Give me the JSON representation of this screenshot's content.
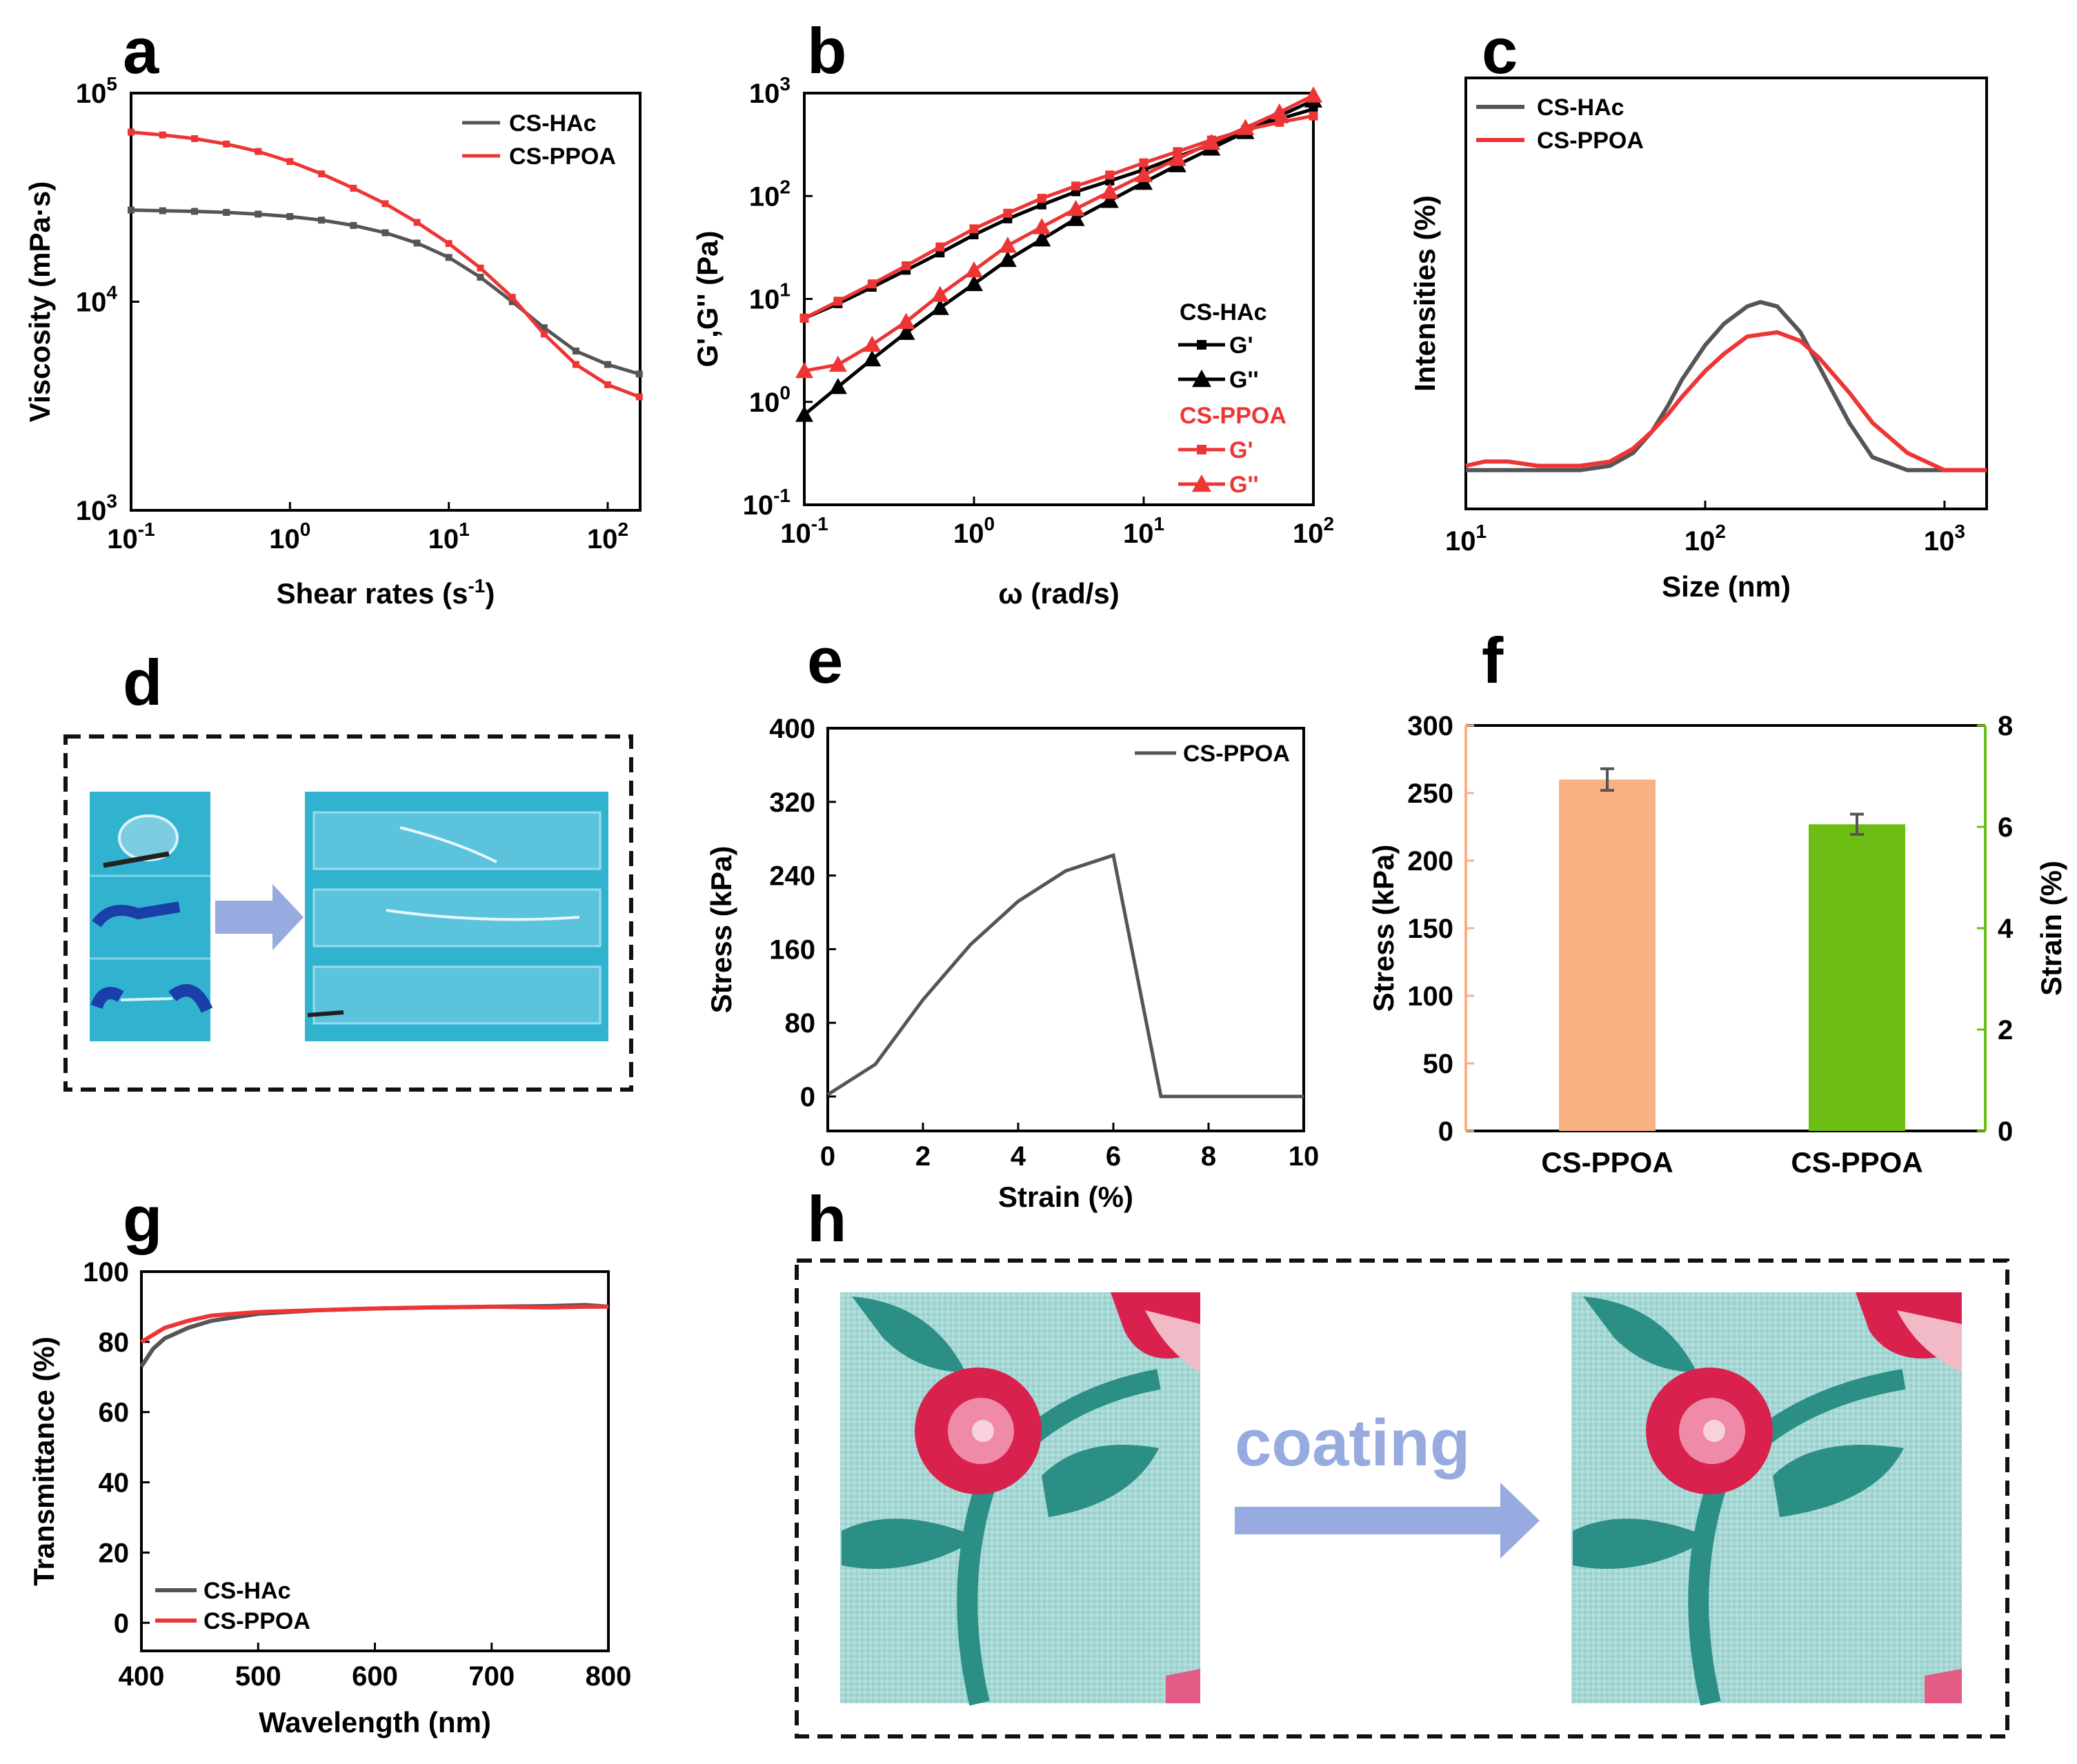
{
  "panel_labels": {
    "a": "a",
    "b": "b",
    "c": "c",
    "d": "d",
    "e": "e",
    "f": "f",
    "g": "g",
    "h": "h"
  },
  "colors": {
    "black": "#555555",
    "red": "#ee3535",
    "orange": "#f9b082",
    "green": "#6cbd14",
    "arrow": "#98abe0",
    "photo_bg": "#31b3d0"
  },
  "chart_data": [
    {
      "id": "a",
      "type": "line",
      "xscale": "log",
      "yscale": "log",
      "xlabel": "Shear rates (s",
      "xlabel_sup": "-1",
      "xlabel_end": ")",
      "ylabel": "Viscosity (mPa·s)",
      "xlim": [
        0.1,
        160
      ],
      "ylim": [
        1000,
        100000
      ],
      "xticks": [
        {
          "base": "10",
          "exp": "-1"
        },
        {
          "base": "10",
          "exp": "0"
        },
        {
          "base": "10",
          "exp": "1"
        },
        {
          "base": "10",
          "exp": "2"
        }
      ],
      "yticks": [
        {
          "base": "10",
          "exp": "3"
        },
        {
          "base": "10",
          "exp": "4"
        },
        {
          "base": "10",
          "exp": "5"
        }
      ],
      "series": [
        {
          "name": "CS-HAc",
          "color": "#555555",
          "x": [
            0.1,
            0.158,
            0.251,
            0.398,
            0.631,
            1,
            1.58,
            2.51,
            3.98,
            6.31,
            10,
            15.8,
            25.1,
            39.8,
            63.1,
            100,
            158
          ],
          "y": [
            27500,
            27300,
            27100,
            26800,
            26300,
            25600,
            24600,
            23200,
            21400,
            19100,
            16300,
            13100,
            10000,
            7500,
            5800,
            5000,
            4500
          ]
        },
        {
          "name": "CS-PPOA",
          "color": "#ee3535",
          "x": [
            0.1,
            0.158,
            0.251,
            0.398,
            0.631,
            1,
            1.58,
            2.51,
            3.98,
            6.31,
            10,
            15.8,
            25.1,
            39.8,
            63.1,
            100,
            158
          ],
          "y": [
            65000,
            63000,
            60500,
            57000,
            52500,
            47000,
            41000,
            35000,
            29500,
            24000,
            19000,
            14500,
            10500,
            7000,
            5000,
            4000,
            3500
          ]
        }
      ]
    },
    {
      "id": "b",
      "type": "line",
      "xscale": "log",
      "yscale": "log",
      "xlabel": "ω (rad/s)",
      "ylabel": "G',G'' (Pa)",
      "xlim": [
        0.1,
        100
      ],
      "ylim": [
        0.1,
        1000
      ],
      "xticks": [
        {
          "base": "10",
          "exp": "-1"
        },
        {
          "base": "10",
          "exp": "0"
        },
        {
          "base": "10",
          "exp": "1"
        },
        {
          "base": "10",
          "exp": "2"
        }
      ],
      "yticks": [
        {
          "base": "10",
          "exp": "-1"
        },
        {
          "base": "10",
          "exp": "0"
        },
        {
          "base": "10",
          "exp": "1"
        },
        {
          "base": "10",
          "exp": "2"
        },
        {
          "base": "10",
          "exp": "3"
        }
      ],
      "legend": {
        "group1": "CS-HAc",
        "group2": "CS-PPOA"
      },
      "series": [
        {
          "name": "G'",
          "group": "CS-HAc",
          "marker": "square",
          "color": "#000000",
          "x": [
            0.1,
            0.158,
            0.251,
            0.398,
            0.631,
            1,
            1.58,
            2.51,
            3.98,
            6.31,
            10,
            15.8,
            25.1,
            39.8,
            63.1,
            100
          ],
          "y": [
            6.5,
            9,
            13,
            19,
            28,
            42,
            60,
            82,
            110,
            140,
            180,
            240,
            320,
            430,
            560,
            700
          ]
        },
        {
          "name": "G''",
          "group": "CS-HAc",
          "marker": "triangle",
          "color": "#000000",
          "x": [
            0.1,
            0.158,
            0.251,
            0.398,
            0.631,
            1,
            1.58,
            2.51,
            3.98,
            6.31,
            10,
            15.8,
            25.1,
            39.8,
            63.1,
            100
          ],
          "y": [
            0.75,
            1.4,
            2.6,
            4.7,
            8.2,
            14,
            24,
            38,
            60,
            90,
            135,
            200,
            290,
            420,
            600,
            850
          ]
        },
        {
          "name": "G'",
          "group": "CS-PPOA",
          "marker": "square",
          "color": "#ee3535",
          "x": [
            0.1,
            0.158,
            0.251,
            0.398,
            0.631,
            1,
            1.58,
            2.51,
            3.98,
            6.31,
            10,
            15.8,
            25.1,
            39.8,
            63.1,
            100
          ],
          "y": [
            6.5,
            9.5,
            14,
            21,
            32,
            48,
            68,
            95,
            125,
            160,
            210,
            270,
            350,
            440,
            520,
            600
          ]
        },
        {
          "name": "G''",
          "group": "CS-PPOA",
          "marker": "triangle",
          "color": "#ee3535",
          "x": [
            0.1,
            0.158,
            0.251,
            0.398,
            0.631,
            1,
            1.58,
            2.51,
            3.98,
            6.31,
            10,
            15.8,
            25.1,
            39.8,
            63.1,
            100
          ],
          "y": [
            2,
            2.3,
            3.6,
            6,
            11,
            19,
            33,
            50,
            75,
            110,
            160,
            230,
            330,
            460,
            650,
            950
          ]
        }
      ]
    },
    {
      "id": "c",
      "type": "line",
      "xscale": "log",
      "xlabel": "Size (nm)",
      "ylabel": "Intensities (%)",
      "xlim": [
        10,
        1500
      ],
      "ylim": [
        0,
        1
      ],
      "xticks": [
        {
          "base": "10",
          "exp": "1"
        },
        {
          "base": "10",
          "exp": "2"
        },
        {
          "base": "10",
          "exp": "3"
        }
      ],
      "series": [
        {
          "name": "CS-HAc",
          "color": "#555555",
          "x": [
            10,
            20,
            30,
            40,
            50,
            60,
            70,
            80,
            100,
            120,
            150,
            170,
            200,
            250,
            300,
            400,
            500,
            700,
            1000,
            1500
          ],
          "y": [
            0.09,
            0.09,
            0.09,
            0.1,
            0.13,
            0.18,
            0.24,
            0.3,
            0.38,
            0.43,
            0.47,
            0.48,
            0.47,
            0.41,
            0.33,
            0.2,
            0.12,
            0.09,
            0.09,
            0.09
          ]
        },
        {
          "name": "CS-PPOA",
          "color": "#ee3535",
          "x": [
            10,
            12,
            15,
            20,
            30,
            40,
            50,
            60,
            70,
            80,
            100,
            120,
            150,
            200,
            250,
            300,
            400,
            500,
            700,
            1000,
            1500
          ],
          "y": [
            0.1,
            0.11,
            0.11,
            0.1,
            0.1,
            0.11,
            0.14,
            0.18,
            0.22,
            0.26,
            0.32,
            0.36,
            0.4,
            0.41,
            0.39,
            0.35,
            0.27,
            0.2,
            0.13,
            0.09,
            0.09
          ]
        }
      ]
    },
    {
      "id": "e",
      "type": "line",
      "xlabel": "Strain (%)",
      "ylabel": "Stress (kPa)",
      "xlim": [
        0,
        10
      ],
      "ylim": [
        0,
        400
      ],
      "xticks": [
        "0",
        "2",
        "4",
        "6",
        "8",
        "10"
      ],
      "yticks": [
        "0",
        "80",
        "160",
        "240",
        "320",
        "400"
      ],
      "series": [
        {
          "name": "CS-PPOA",
          "color": "#555555",
          "x": [
            0,
            1,
            2,
            3,
            4,
            5,
            6,
            7,
            8,
            9,
            10
          ],
          "y": [
            2,
            35,
            105,
            165,
            212,
            245,
            262,
            0,
            0,
            0,
            0
          ]
        }
      ]
    },
    {
      "id": "f",
      "type": "bar",
      "categories": [
        "CS-PPOA",
        "CS-PPOA"
      ],
      "ylabel": "Stress (kPa)",
      "ylabel_right": "Strain (%)",
      "ylim": [
        0,
        300
      ],
      "ylim_right": [
        0,
        8
      ],
      "yticks": [
        "0",
        "50",
        "100",
        "150",
        "200",
        "250",
        "300"
      ],
      "yticks_right": [
        "0",
        "2",
        "4",
        "6",
        "8"
      ],
      "series": [
        {
          "name": "Stress",
          "axis": "left",
          "color": "#f9b082",
          "value": 260,
          "error": 8
        },
        {
          "name": "Strain",
          "axis": "right",
          "color": "#6cbd14",
          "value": 6.05,
          "error": 0.2
        }
      ]
    },
    {
      "id": "g",
      "type": "line",
      "xlabel": "Wavelength (nm)",
      "ylabel": "Transmittance (%)",
      "xlim": [
        400,
        800
      ],
      "ylim": [
        -8,
        100
      ],
      "xticks": [
        "400",
        "500",
        "600",
        "700",
        "800"
      ],
      "yticks": [
        "0",
        "20",
        "40",
        "60",
        "80",
        "100"
      ],
      "series": [
        {
          "name": "CS-HAc",
          "color": "#555555",
          "x": [
            400,
            410,
            420,
            440,
            460,
            480,
            500,
            550,
            600,
            650,
            700,
            750,
            780,
            800
          ],
          "y": [
            73,
            78,
            81,
            84,
            86,
            87,
            88,
            89,
            89.5,
            89.8,
            90,
            90.2,
            90.5,
            90
          ]
        },
        {
          "name": "CS-PPOA",
          "color": "#ee3535",
          "x": [
            400,
            410,
            420,
            440,
            460,
            480,
            500,
            550,
            600,
            650,
            700,
            750,
            780,
            800
          ],
          "y": [
            80,
            82,
            84,
            86,
            87.5,
            88,
            88.5,
            89,
            89.5,
            89.8,
            90,
            89.8,
            90,
            90
          ]
        }
      ]
    }
  ],
  "panel_h": {
    "arrow_text": "coating"
  }
}
